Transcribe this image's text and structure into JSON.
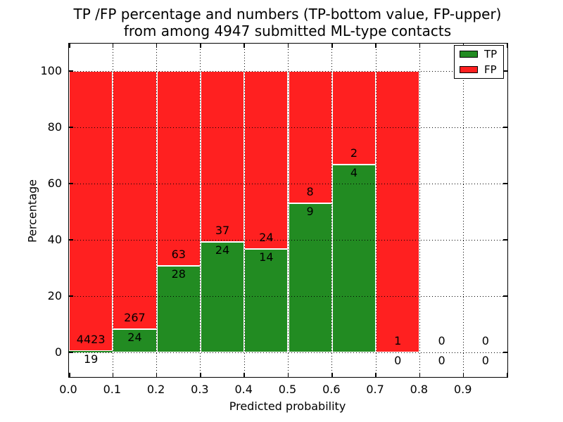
{
  "title": {
    "line1": "TP /FP percentage and numbers (TP-bottom value, FP-upper)",
    "line2": "from among 4947 submitted ML-type contacts"
  },
  "x_axis": {
    "label": "Predicted probability",
    "ticks": [
      "0.0",
      "0.1",
      "0.2",
      "0.3",
      "0.4",
      "0.5",
      "0.6",
      "0.7",
      "0.8",
      "0.9"
    ]
  },
  "y_axis": {
    "label": "Percentage",
    "ticks": [
      "0",
      "20",
      "40",
      "60",
      "80",
      "100"
    ]
  },
  "legend": {
    "items": [
      {
        "label": "TP",
        "color": "#228b22"
      },
      {
        "label": "FP",
        "color": "#ff2020"
      }
    ]
  },
  "colors": {
    "tp": "#228b22",
    "fp": "#ff2020",
    "grid": "#000000",
    "background": "#ffffff"
  },
  "chart_data": {
    "type": "bar",
    "stacked": true,
    "normalized_to_percent": true,
    "title": "TP /FP percentage and numbers (TP-bottom value, FP-upper) from among 4947 submitted ML-type contacts",
    "xlabel": "Predicted probability",
    "ylabel": "Percentage",
    "categories": [
      "0.0-0.1",
      "0.1-0.2",
      "0.2-0.3",
      "0.3-0.4",
      "0.4-0.5",
      "0.5-0.6",
      "0.6-0.7",
      "0.7-0.8",
      "0.8-0.9",
      "0.9-1.0"
    ],
    "series": [
      {
        "name": "TP",
        "color": "#228b22",
        "values": [
          19,
          24,
          28,
          24,
          14,
          9,
          4,
          0,
          0,
          0
        ]
      },
      {
        "name": "FP",
        "color": "#ff2020",
        "values": [
          4423,
          267,
          63,
          37,
          24,
          8,
          2,
          1,
          0,
          0
        ]
      }
    ],
    "tp_percent_heights": [
      0.43,
      8.25,
      30.77,
      39.34,
      36.84,
      52.94,
      66.67,
      0,
      null,
      null
    ],
    "total_contacts": 4947,
    "xlim": [
      0.0,
      1.0
    ],
    "ylim": [
      -9,
      110
    ],
    "yticks": [
      0,
      20,
      40,
      60,
      80,
      100
    ],
    "grid": "dotted",
    "legend_position": "upper right"
  }
}
